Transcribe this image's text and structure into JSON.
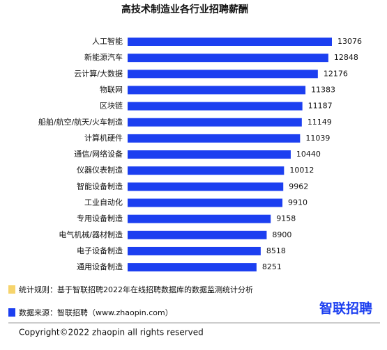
{
  "chart_data": {
    "type": "bar",
    "orientation": "horizontal",
    "title": "高技术制造业各行业招聘薪酬",
    "categories": [
      "人工智能",
      "新能源汽车",
      "云计算/大数据",
      "物联网",
      "区块链",
      "船舶/航空/航天/火车制造",
      "计算机硬件",
      "通信/网络设备",
      "仪器仪表制造",
      "智能设备制造",
      "工业自动化",
      "专用设备制造",
      "电气机械/器材制造",
      "电子设备制造",
      "通用设备制造"
    ],
    "values": [
      13076,
      12848,
      12176,
      11383,
      11187,
      11149,
      11039,
      10440,
      10012,
      9962,
      9910,
      9158,
      8900,
      8518,
      8251
    ],
    "color": "#1c3ff0"
  },
  "footer": {
    "rule": "统计规则：基于智联招聘2022年在线招聘数据库的数据监测统计分析",
    "source": "数据来源：智联招聘（www.zhaopin.com）",
    "logo": "智联招聘",
    "copyright": "Copyright©2022 zhaopin all rights reserved"
  }
}
